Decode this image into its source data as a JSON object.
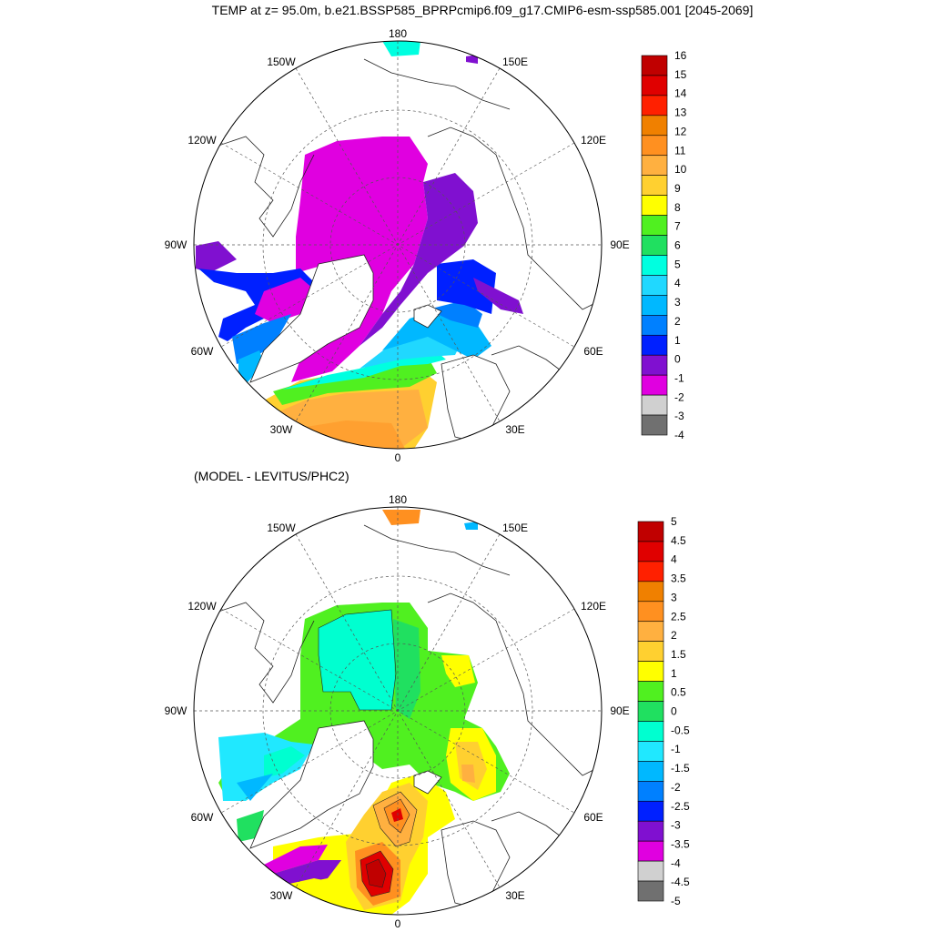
{
  "title": "TEMP at z=  95.0m, b.e21.BSSP585_BPRPcmip6.f09_g17.CMIP6-esm-ssp585.001 [2045-2069]",
  "panels": [
    {
      "id": "model",
      "subtitle": "",
      "lon_labels": [
        "180",
        "150E",
        "120E",
        "90E",
        "60E",
        "30E",
        "0",
        "30W",
        "60W",
        "90W",
        "120W",
        "150W"
      ],
      "colorbar": {
        "labels": [
          "16",
          "15",
          "14",
          "13",
          "12",
          "11",
          "10",
          "9",
          "8",
          "7",
          "6",
          "5",
          "4",
          "3",
          "2",
          "1",
          "0",
          "-1",
          "-2",
          "-3",
          "-4"
        ],
        "colors": [
          "#c00000",
          "#e00000",
          "#ff2000",
          "#f08000",
          "#ff9020",
          "#ffb040",
          "#ffd030",
          "#ffff00",
          "#50f020",
          "#20e060",
          "#00ffe0",
          "#20d8ff",
          "#00b8ff",
          "#0080ff",
          "#0020ff",
          "#8010d0",
          "#e000e0",
          "#d0d0d0",
          "#707070"
        ]
      }
    },
    {
      "id": "diff",
      "subtitle": "(MODEL - LEVITUS/PHC2)",
      "lon_labels": [
        "180",
        "150E",
        "120E",
        "90E",
        "60E",
        "30E",
        "0",
        "30W",
        "60W",
        "90W",
        "120W",
        "150W"
      ],
      "colorbar": {
        "labels": [
          "5",
          "4.5",
          "4",
          "3.5",
          "3",
          "2.5",
          "2",
          "1.5",
          "1",
          "0.5",
          "0",
          "-0.5",
          "-1",
          "-1.5",
          "-2",
          "-2.5",
          "-3",
          "-3.5",
          "-4",
          "-4.5",
          "-5"
        ],
        "colors": [
          "#c00000",
          "#e00000",
          "#ff2000",
          "#f08000",
          "#ff9020",
          "#ffb040",
          "#ffd030",
          "#ffff00",
          "#50f020",
          "#20e060",
          "#00ffd0",
          "#20e8ff",
          "#00b8ff",
          "#0080ff",
          "#0020ff",
          "#8010d0",
          "#e000e0",
          "#d0d0d0",
          "#707070"
        ]
      }
    }
  ]
}
